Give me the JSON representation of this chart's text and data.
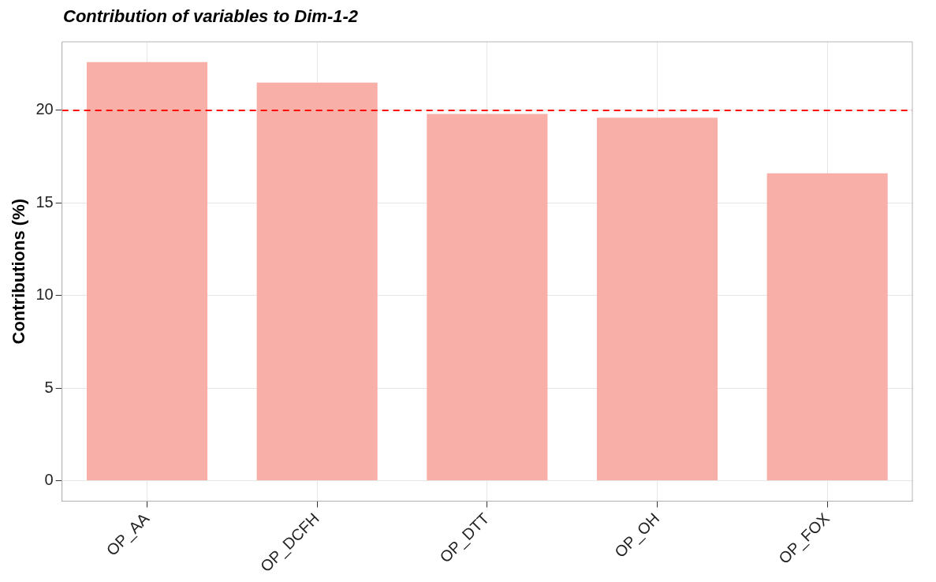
{
  "chart_data": {
    "type": "bar",
    "title": "Contribution of variables to Dim-1-2",
    "ylabel": "Contributions (%)",
    "categories": [
      "OP_AA",
      "OP_DCFH",
      "OP_DTT",
      "OP_OH",
      "OP_FOX"
    ],
    "values": [
      22.6,
      21.5,
      19.8,
      19.6,
      16.6
    ],
    "color": "#f8afa8",
    "ylim": [
      -1.1,
      23.7
    ],
    "yticks": [
      0,
      5,
      10,
      15,
      20
    ],
    "grid": true,
    "ref_lines": [
      {
        "axis": "y",
        "value": 20,
        "color": "#ff0000",
        "line_style": "dashed"
      }
    ]
  }
}
